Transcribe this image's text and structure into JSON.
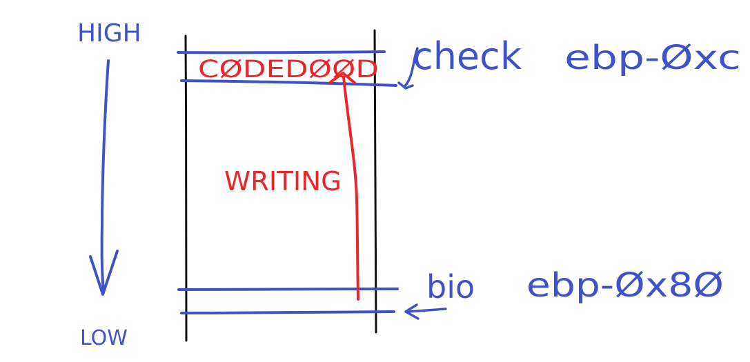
{
  "colors": {
    "ink_blue": "#4052c8",
    "ink_red": "#e8262b",
    "ink_black": "#111111",
    "background": "#ffffff"
  },
  "labels": {
    "high": "HIGH",
    "low": "LOW",
    "canary_value": "CØDEDØØD",
    "writing": "WRITING",
    "check": "check",
    "check_offset": "ebp-Øxc",
    "bio": "bio",
    "bio_offset": "ebp-Øx8Ø"
  }
}
